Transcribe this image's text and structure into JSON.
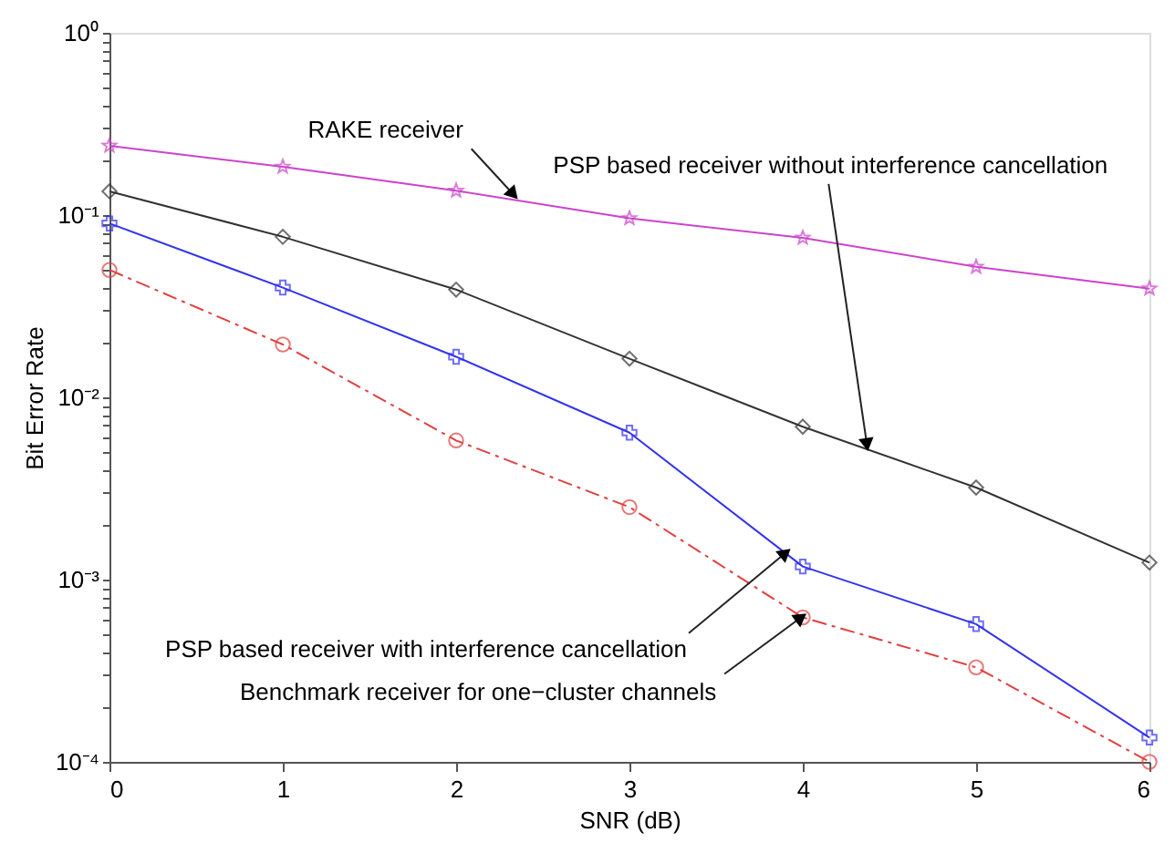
{
  "chart_data": {
    "type": "line",
    "xlabel": "SNR (dB)",
    "ylabel": "Bit Error Rate",
    "x": [
      0,
      1,
      2,
      3,
      4,
      5,
      6
    ],
    "xlim": [
      0,
      6
    ],
    "xticks": [
      0,
      1,
      2,
      3,
      4,
      5,
      6
    ],
    "ylim": [
      0.0001,
      1
    ],
    "log": true,
    "grid": false,
    "yticks": [
      {
        "value": 0.0001,
        "label": "10⁻⁴"
      },
      {
        "value": 0.0002,
        "label": null
      },
      {
        "value": 0.0003,
        "label": null
      },
      {
        "value": 0.0004,
        "label": null
      },
      {
        "value": 0.0005,
        "label": null
      },
      {
        "value": 0.0006,
        "label": null
      },
      {
        "value": 0.0007,
        "label": null
      },
      {
        "value": 0.0008,
        "label": null
      },
      {
        "value": 0.0009,
        "label": null
      },
      {
        "value": 0.001,
        "label": "10⁻³"
      },
      {
        "value": 0.002,
        "label": null
      },
      {
        "value": 0.003,
        "label": null
      },
      {
        "value": 0.004,
        "label": null
      },
      {
        "value": 0.005,
        "label": null
      },
      {
        "value": 0.006,
        "label": null
      },
      {
        "value": 0.007,
        "label": null
      },
      {
        "value": 0.008,
        "label": null
      },
      {
        "value": 0.009,
        "label": null
      },
      {
        "value": 0.01,
        "label": "10⁻²"
      },
      {
        "value": 0.02,
        "label": null
      },
      {
        "value": 0.03,
        "label": null
      },
      {
        "value": 0.04,
        "label": null
      },
      {
        "value": 0.05,
        "label": null
      },
      {
        "value": 0.06,
        "label": null
      },
      {
        "value": 0.07,
        "label": null
      },
      {
        "value": 0.08,
        "label": null
      },
      {
        "value": 0.09,
        "label": null
      },
      {
        "value": 0.1,
        "label": "10⁻¹"
      },
      {
        "value": 0.2,
        "label": null
      },
      {
        "value": 0.3,
        "label": null
      },
      {
        "value": 0.4,
        "label": null
      },
      {
        "value": 0.5,
        "label": null
      },
      {
        "value": 0.6,
        "label": null
      },
      {
        "value": 0.7,
        "label": null
      },
      {
        "value": 0.8,
        "label": null
      },
      {
        "value": 0.9,
        "label": null
      },
      {
        "value": 1,
        "label": "10⁰"
      }
    ],
    "series": [
      {
        "color": "#cc44cc",
        "marker": "star",
        "line_style": "solid",
        "values": [
          0.24,
          0.184,
          0.136,
          0.096,
          0.075,
          0.052,
          0.0395
        ]
      },
      {
        "color": "#333333",
        "marker": "diamond",
        "line_style": "solid",
        "values": [
          0.135,
          0.076,
          0.039,
          0.0163,
          0.0069,
          0.0032,
          0.00124
        ]
      },
      {
        "color": "#3333ee",
        "marker": "cross",
        "line_style": "solid",
        "values": [
          0.09,
          0.04,
          0.0167,
          0.0064,
          0.00118,
          0.00057,
          0.000136
        ]
      },
      {
        "color": "#e04040",
        "marker": "circle",
        "line_style": "dashed",
        "values": [
          0.05,
          0.0195,
          0.0058,
          0.0025,
          0.00062,
          0.00033,
          0.0001
        ]
      }
    ],
    "annotations": [
      {
        "text": "RAKE receiver",
        "x": 2.33,
        "y": 0.13
      },
      {
        "text": "PSP based receiver without interference cancellation",
        "x": 4.37,
        "y": 0.0055
      },
      {
        "text": "PSP based receiver with interference cancellation",
        "x": 3.9,
        "y": 0.0014
      },
      {
        "text": "Benchmark receiver for one−cluster channels",
        "x": 3.99,
        "y": 0.00062
      }
    ]
  }
}
